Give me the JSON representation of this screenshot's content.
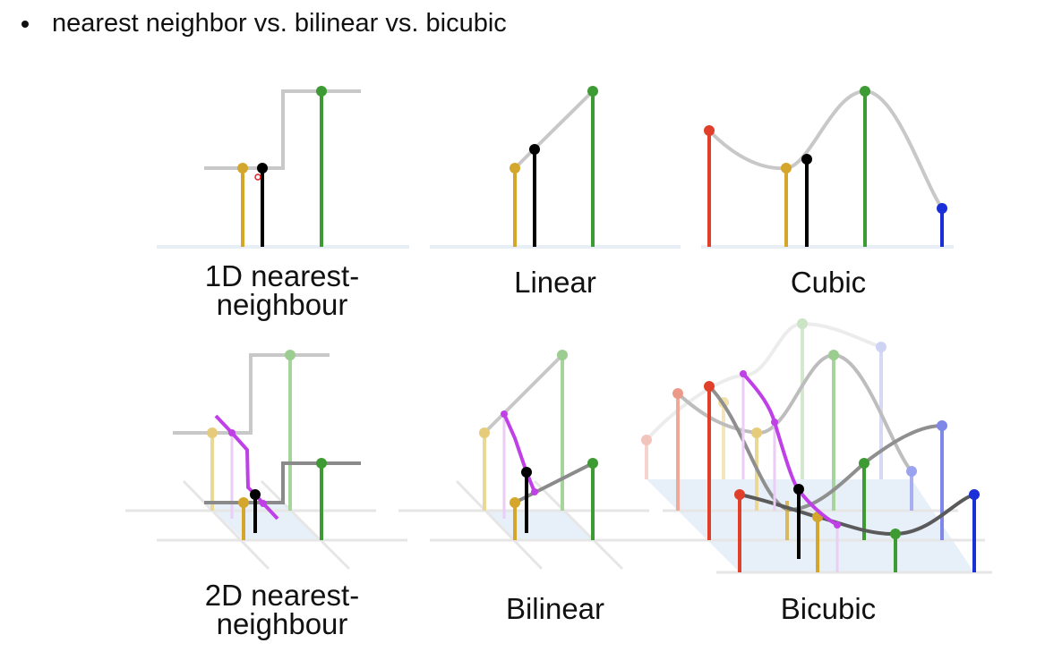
{
  "heading": "nearest neighbor vs. bilinear vs. bicubic",
  "panels": [
    {
      "id": "nn1d",
      "caption": "1D nearest-\nneighbour"
    },
    {
      "id": "linear",
      "caption": "Linear"
    },
    {
      "id": "cubic",
      "caption": "Cubic"
    },
    {
      "id": "nn2d",
      "caption": "2D nearest-\nneighbour"
    },
    {
      "id": "bilinear",
      "caption": "Bilinear"
    },
    {
      "id": "bicubic",
      "caption": "Bicubic"
    }
  ],
  "colors": {
    "sample_yellow": "#d4a72c",
    "sample_green": "#3e9a32",
    "sample_red": "#e0402a",
    "sample_blue": "#1b2fd8",
    "interpolated": "#000000",
    "curve": "#c8c8c8",
    "curve_dark": "#6e6e6e",
    "path_2d": "#c040e8",
    "base_plane": "#dde9f7"
  }
}
